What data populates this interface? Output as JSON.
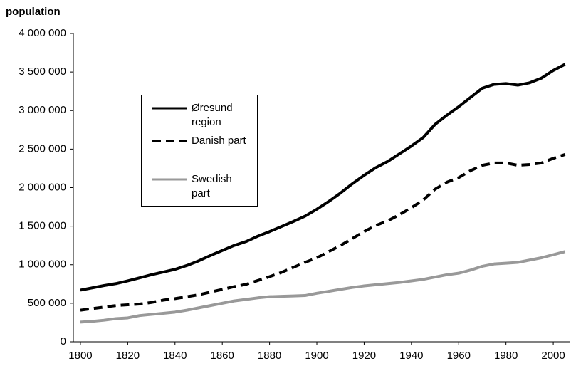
{
  "chart_data": {
    "type": "line",
    "y_label": "population",
    "x": [
      1800,
      1805,
      1810,
      1815,
      1820,
      1825,
      1830,
      1835,
      1840,
      1845,
      1850,
      1855,
      1860,
      1865,
      1870,
      1875,
      1880,
      1885,
      1890,
      1895,
      1900,
      1905,
      1910,
      1915,
      1920,
      1925,
      1930,
      1935,
      1940,
      1945,
      1950,
      1955,
      1960,
      1965,
      1970,
      1975,
      1980,
      1985,
      1990,
      1995,
      2000,
      2005
    ],
    "series": [
      {
        "name": "Øresund region",
        "color": "#000000",
        "style": "solid",
        "values": [
          670000,
          700000,
          730000,
          755000,
          790000,
          830000,
          870000,
          905000,
          940000,
          990000,
          1050000,
          1120000,
          1185000,
          1250000,
          1300000,
          1370000,
          1430000,
          1495000,
          1560000,
          1630000,
          1720000,
          1820000,
          1930000,
          2050000,
          2160000,
          2260000,
          2340000,
          2440000,
          2540000,
          2650000,
          2820000,
          2940000,
          3050000,
          3170000,
          3290000,
          3340000,
          3350000,
          3330000,
          3360000,
          3420000,
          3520000,
          3600000
        ]
      },
      {
        "name": "Danish part",
        "color": "#000000",
        "style": "dashed",
        "values": [
          410000,
          430000,
          450000,
          470000,
          480000,
          490000,
          510000,
          540000,
          560000,
          585000,
          610000,
          645000,
          680000,
          715000,
          745000,
          795000,
          845000,
          900000,
          965000,
          1030000,
          1090000,
          1170000,
          1250000,
          1340000,
          1430000,
          1510000,
          1570000,
          1650000,
          1740000,
          1840000,
          1980000,
          2070000,
          2130000,
          2220000,
          2290000,
          2320000,
          2320000,
          2290000,
          2300000,
          2320000,
          2380000,
          2430000
        ]
      },
      {
        "name": "Swedish part",
        "color": "#999999",
        "style": "solid",
        "values": [
          255000,
          265000,
          280000,
          300000,
          310000,
          340000,
          355000,
          370000,
          385000,
          410000,
          440000,
          470000,
          500000,
          530000,
          550000,
          570000,
          585000,
          590000,
          595000,
          600000,
          630000,
          655000,
          680000,
          705000,
          725000,
          740000,
          755000,
          770000,
          790000,
          810000,
          840000,
          870000,
          890000,
          930000,
          980000,
          1010000,
          1020000,
          1030000,
          1060000,
          1090000,
          1130000,
          1170000
        ]
      }
    ],
    "xlim": [
      1797,
      2006
    ],
    "xticks": [
      1800,
      1820,
      1840,
      1860,
      1880,
      1900,
      1920,
      1940,
      1960,
      1980,
      2000
    ],
    "ylim": [
      0,
      4000000
    ],
    "yticks": [
      0,
      {
        "value": 500000,
        "label": "500 000"
      },
      {
        "value": 1000000,
        "label": "1 000 000"
      },
      {
        "value": 1500000,
        "label": "1 500 000"
      },
      {
        "value": 2000000,
        "label": "2 000 000"
      },
      {
        "value": 2500000,
        "label": "2 500 000"
      },
      {
        "value": 3000000,
        "label": "3 000 000"
      },
      {
        "value": 3500000,
        "label": "3 500 000"
      },
      {
        "value": 4000000,
        "label": "4 000 000"
      }
    ]
  }
}
